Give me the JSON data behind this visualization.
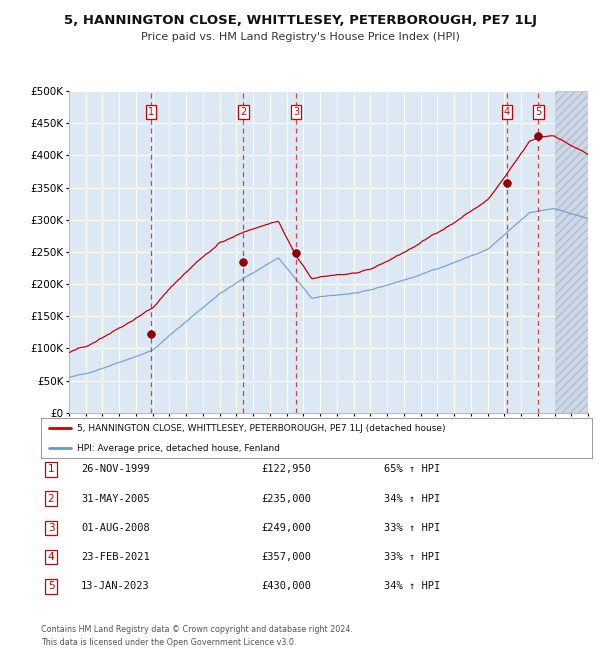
{
  "title": "5, HANNINGTON CLOSE, WHITTLESEY, PETERBOROUGH, PE7 1LJ",
  "subtitle": "Price paid vs. HM Land Registry's House Price Index (HPI)",
  "ylim": [
    0,
    500000
  ],
  "x_start_year": 1995,
  "x_end_year": 2026,
  "sale_dates": [
    1999.91,
    2005.42,
    2008.58,
    2021.15,
    2023.04
  ],
  "sale_prices": [
    122950,
    235000,
    249000,
    357000,
    430000
  ],
  "sale_labels": [
    "1",
    "2",
    "3",
    "4",
    "5"
  ],
  "legend_line1": "5, HANNINGTON CLOSE, WHITTLESEY, PETERBOROUGH, PE7 1LJ (detached house)",
  "legend_line2": "HPI: Average price, detached house, Fenland",
  "table_rows": [
    [
      "1",
      "26-NOV-1999",
      "£122,950",
      "65% ↑ HPI"
    ],
    [
      "2",
      "31-MAY-2005",
      "£235,000",
      "34% ↑ HPI"
    ],
    [
      "3",
      "01-AUG-2008",
      "£249,000",
      "33% ↑ HPI"
    ],
    [
      "4",
      "23-FEB-2021",
      "£357,000",
      "33% ↑ HPI"
    ],
    [
      "5",
      "13-JAN-2023",
      "£430,000",
      "34% ↑ HPI"
    ]
  ],
  "footer_line1": "Contains HM Land Registry data © Crown copyright and database right 2024.",
  "footer_line2": "This data is licensed under the Open Government Licence v3.0.",
  "hpi_color": "#6699cc",
  "price_color": "#cc0000",
  "bg_color": "#dce9f5",
  "grid_color": "#ffffff",
  "dashed_vline_color": "#cc3333"
}
